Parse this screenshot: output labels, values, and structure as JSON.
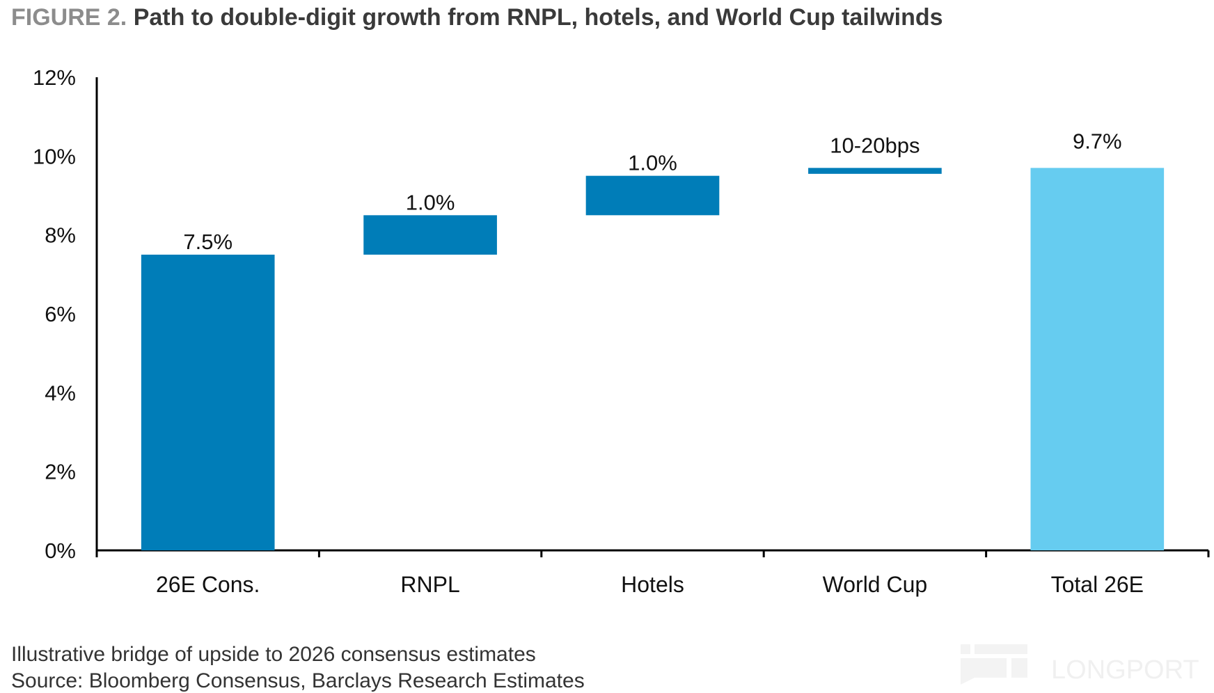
{
  "title": {
    "figure_label": "FIGURE 2.",
    "text": "Path to double-digit growth from RNPL, hotels, and World Cup tailwinds"
  },
  "footnote": "Illustrative bridge of upside to 2026 consensus estimates",
  "source": "Source: Bloomberg Consensus, Barclays Research Estimates",
  "watermark": "LONGPORT",
  "colors": {
    "increment": "#007DB8",
    "total": "#66CCF0",
    "axis": "#000000"
  },
  "chart_data": {
    "type": "bar",
    "subtype": "waterfall",
    "categories": [
      "26E Cons.",
      "RNPL",
      "Hotels",
      "World Cup",
      "Total 26E"
    ],
    "bars": [
      {
        "category": "26E Cons.",
        "start": 0,
        "end": 7.5,
        "label": "7.5%",
        "kind": "base"
      },
      {
        "category": "RNPL",
        "start": 7.5,
        "end": 8.5,
        "label": "1.0%",
        "kind": "increment"
      },
      {
        "category": "Hotels",
        "start": 8.5,
        "end": 9.5,
        "label": "1.0%",
        "kind": "increment"
      },
      {
        "category": "World Cup",
        "start": 9.55,
        "end": 9.7,
        "label": "10-20bps",
        "kind": "increment"
      },
      {
        "category": "Total 26E",
        "start": 0,
        "end": 9.7,
        "label": "9.7%",
        "kind": "total"
      }
    ],
    "ylim": [
      0,
      12
    ],
    "yticks": [
      0,
      2,
      4,
      6,
      8,
      10,
      12
    ],
    "ytick_labels": [
      "0%",
      "2%",
      "4%",
      "6%",
      "8%",
      "10%",
      "12%"
    ],
    "grid": false,
    "legend": "none"
  }
}
